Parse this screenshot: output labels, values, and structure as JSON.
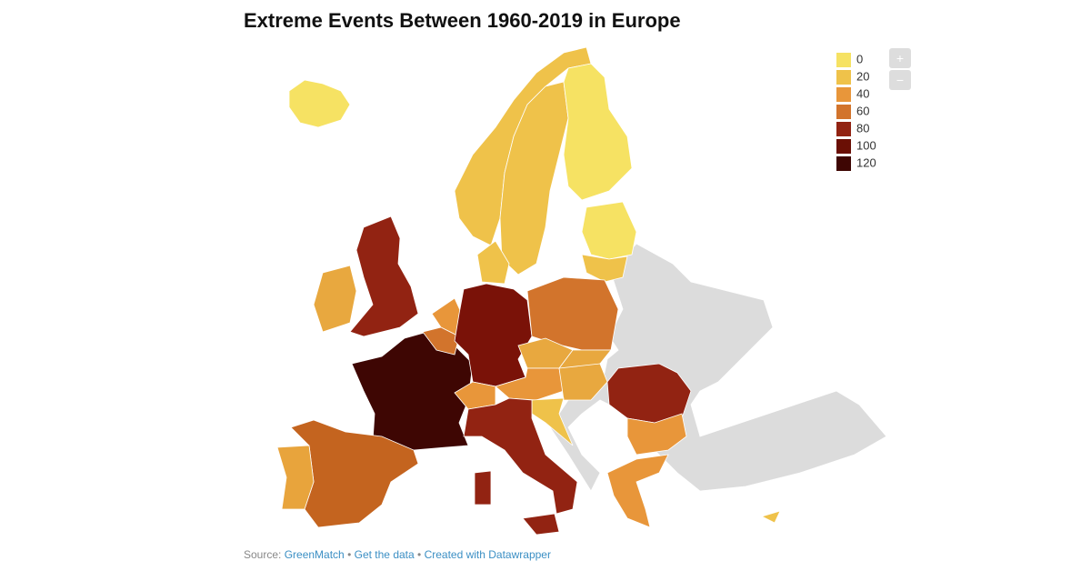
{
  "title": "Extreme Events Between 1960-2019 in Europe",
  "legend": {
    "items": [
      {
        "label": 0,
        "color": "#f6e263"
      },
      {
        "label": 20,
        "color": "#efc24a"
      },
      {
        "label": 40,
        "color": "#e8963a"
      },
      {
        "label": 60,
        "color": "#d2742c"
      },
      {
        "label": 80,
        "color": "#922312"
      },
      {
        "label": 100,
        "color": "#6a0f05"
      },
      {
        "label": 120,
        "color": "#3e0603"
      }
    ]
  },
  "zoom": {
    "in": "+",
    "out": "−"
  },
  "footer": {
    "source_label": "Source:",
    "source": "GreenMatch",
    "separator": "•",
    "get_data": "Get the data",
    "credit": "Created with Datawrapper"
  }
}
